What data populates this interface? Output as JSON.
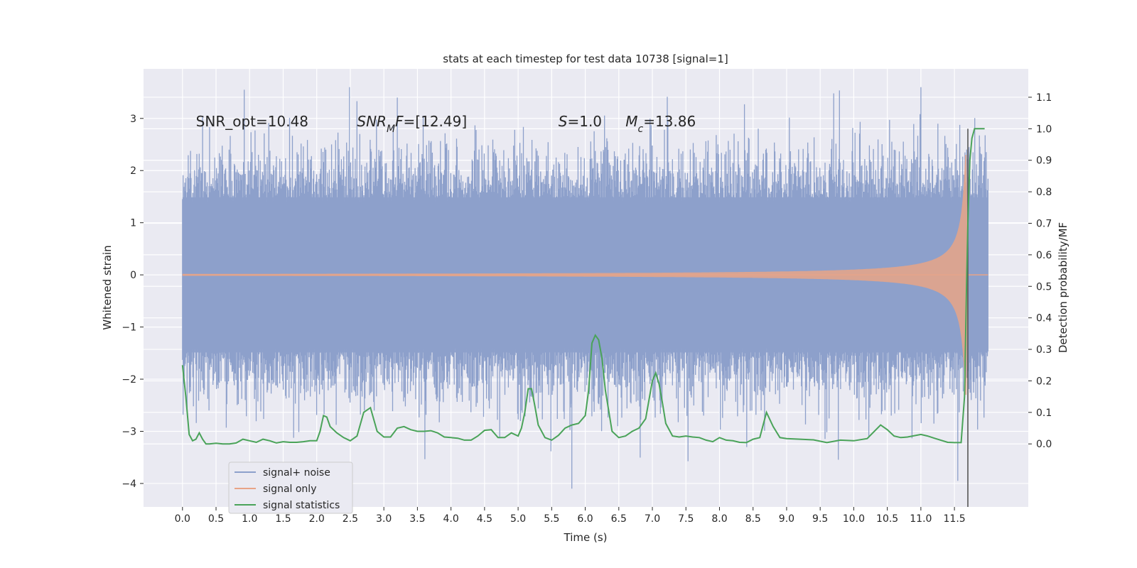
{
  "chart_data": {
    "type": "line",
    "title": "stats at each timestep for test data 10738 [signal=1]",
    "xlabel": "Time (s)",
    "ylabel": "Whitened strain",
    "ylabel_right": "Detection probability/MF",
    "xlim": [
      -0.58,
      12.6
    ],
    "ylim": [
      -4.45,
      3.95
    ],
    "ylim_right": [
      -0.2,
      1.19
    ],
    "grid": true,
    "legend_position": "lower-left",
    "x_ticks": [
      "0.0",
      "0.5",
      "1.0",
      "1.5",
      "2.0",
      "2.5",
      "3.0",
      "3.5",
      "4.0",
      "4.5",
      "5.0",
      "5.5",
      "6.0",
      "6.5",
      "7.0",
      "7.5",
      "8.0",
      "8.5",
      "9.0",
      "9.5",
      "10.0",
      "10.5",
      "11.0",
      "11.5"
    ],
    "y_ticks": [
      "3",
      "2",
      "1",
      "0",
      "−1",
      "−2",
      "−3",
      "−4"
    ],
    "y_ticks_right": [
      "1.1",
      "1.0",
      "0.9",
      "0.8",
      "0.7",
      "0.6",
      "0.5",
      "0.4",
      "0.3",
      "0.2",
      "0.1",
      "0.0"
    ],
    "annotations": [
      {
        "segments": [
          {
            "text": "SNR_opt=10.48",
            "italic": false
          }
        ],
        "x": 0.2,
        "y": 2.85
      },
      {
        "segments": [
          {
            "text": "SNR",
            "italic": true
          },
          {
            "text": "M",
            "italic": true,
            "sub": true
          },
          {
            "text": "F",
            "italic": true
          },
          {
            "text": "=[12.49]",
            "italic": false
          }
        ],
        "x": 2.6,
        "y": 2.85
      },
      {
        "segments": [
          {
            "text": "S",
            "italic": true
          },
          {
            "text": "=1.0",
            "italic": false
          }
        ],
        "x": 5.6,
        "y": 2.85
      },
      {
        "segments": [
          {
            "text": "M",
            "italic": true
          },
          {
            "text": "c",
            "italic": true,
            "sub": true
          },
          {
            "text": "=13.86",
            "italic": false
          }
        ],
        "x": 6.6,
        "y": 2.85
      }
    ],
    "series": [
      {
        "name": "signal+ noise",
        "color": "#8da0cb",
        "axis": "left",
        "description_range": [
          0.0,
          12.0
        ],
        "typical_envelope": [
          -1.6,
          1.6
        ],
        "extremes": {
          "max": 3.6,
          "min": -4.1
        }
      },
      {
        "name": "signal only",
        "color": "#e8a487",
        "axis": "left",
        "description_range": [
          0.0,
          12.0
        ],
        "chirp_peak_time": 11.7,
        "chirp_peak_amplitude": 2.3
      },
      {
        "name": "signal statistics",
        "color": "#4aa359",
        "axis": "right",
        "x": [
          0.0,
          0.05,
          0.1,
          0.15,
          0.2,
          0.25,
          0.3,
          0.35,
          0.4,
          0.5,
          0.6,
          0.7,
          0.8,
          0.9,
          1.0,
          1.1,
          1.2,
          1.3,
          1.4,
          1.5,
          1.6,
          1.7,
          1.8,
          1.9,
          2.0,
          2.05,
          2.1,
          2.15,
          2.2,
          2.3,
          2.4,
          2.5,
          2.6,
          2.7,
          2.8,
          2.9,
          3.0,
          3.1,
          3.2,
          3.3,
          3.4,
          3.5,
          3.6,
          3.7,
          3.8,
          3.9,
          4.0,
          4.1,
          4.2,
          4.3,
          4.4,
          4.5,
          4.6,
          4.7,
          4.8,
          4.9,
          5.0,
          5.05,
          5.1,
          5.15,
          5.2,
          5.25,
          5.3,
          5.4,
          5.5,
          5.6,
          5.7,
          5.8,
          5.9,
          6.0,
          6.05,
          6.1,
          6.15,
          6.2,
          6.25,
          6.3,
          6.4,
          6.5,
          6.6,
          6.7,
          6.8,
          6.9,
          7.0,
          7.05,
          7.1,
          7.15,
          7.2,
          7.3,
          7.4,
          7.5,
          7.6,
          7.7,
          7.8,
          7.9,
          8.0,
          8.1,
          8.2,
          8.3,
          8.4,
          8.5,
          8.6,
          8.7,
          8.8,
          8.9,
          9.0,
          9.2,
          9.4,
          9.6,
          9.8,
          10.0,
          10.2,
          10.4,
          10.5,
          10.6,
          10.7,
          10.8,
          11.0,
          11.1,
          11.2,
          11.4,
          11.5,
          11.6,
          11.65,
          11.68,
          11.7,
          11.73,
          11.76,
          11.8,
          11.85,
          11.9,
          11.95
        ],
        "values": [
          0.25,
          0.15,
          0.03,
          0.01,
          0.015,
          0.035,
          0.015,
          0.0,
          0.0,
          0.002,
          0.0,
          0.0,
          0.003,
          0.015,
          0.01,
          0.005,
          0.015,
          0.01,
          0.003,
          0.007,
          0.005,
          0.005,
          0.007,
          0.01,
          0.01,
          0.04,
          0.09,
          0.085,
          0.055,
          0.035,
          0.02,
          0.01,
          0.025,
          0.1,
          0.115,
          0.04,
          0.022,
          0.022,
          0.05,
          0.055,
          0.045,
          0.04,
          0.04,
          0.042,
          0.035,
          0.022,
          0.02,
          0.018,
          0.012,
          0.012,
          0.025,
          0.043,
          0.045,
          0.02,
          0.02,
          0.035,
          0.025,
          0.05,
          0.1,
          0.175,
          0.175,
          0.12,
          0.06,
          0.02,
          0.012,
          0.027,
          0.05,
          0.06,
          0.065,
          0.09,
          0.17,
          0.32,
          0.345,
          0.33,
          0.27,
          0.17,
          0.04,
          0.02,
          0.025,
          0.04,
          0.05,
          0.08,
          0.2,
          0.225,
          0.19,
          0.13,
          0.065,
          0.025,
          0.022,
          0.025,
          0.022,
          0.02,
          0.012,
          0.007,
          0.02,
          0.012,
          0.01,
          0.005,
          0.004,
          0.015,
          0.02,
          0.1,
          0.055,
          0.02,
          0.017,
          0.015,
          0.013,
          0.004,
          0.012,
          0.01,
          0.017,
          0.06,
          0.045,
          0.025,
          0.02,
          0.022,
          0.03,
          0.025,
          0.018,
          0.005,
          0.004,
          0.004,
          0.15,
          0.5,
          0.7,
          0.9,
          0.97,
          1.0,
          1.0,
          1.0,
          1.0
        ]
      }
    ],
    "vline_x": 11.7
  }
}
